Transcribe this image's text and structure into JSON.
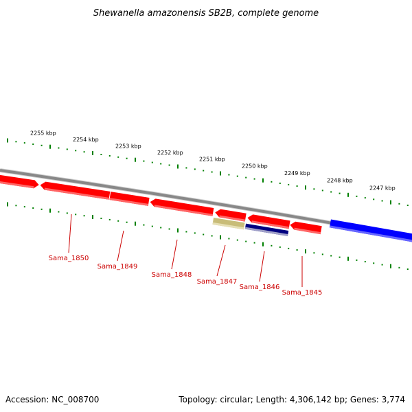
{
  "title": "Shewanella amazonensis SB2B, complete genome",
  "footer": {
    "accession": "Accession: NC_008700",
    "summary": "Topology: circular; Length: 4,306,142 bp; Genes: 3,774"
  },
  "kbp_labels": [
    "2255 kbp",
    "2254 kbp",
    "2253 kbp",
    "2252 kbp",
    "2251 kbp",
    "2250 kbp",
    "2249 kbp",
    "2248 kbp",
    "2247 kbp"
  ],
  "gene_labels": [
    "Sama_1850",
    "Sama_1849",
    "Sama_1848",
    "Sama_1847",
    "Sama_1846",
    "Sama_1845"
  ],
  "colors": {
    "cds": "#ff0000",
    "cds_light": "#ff6666",
    "backbone": "#888888",
    "tick": "#008000",
    "label": "#cc0000",
    "tan": "#c8bc78",
    "navy": "#000080",
    "blue": "#0000ff"
  }
}
